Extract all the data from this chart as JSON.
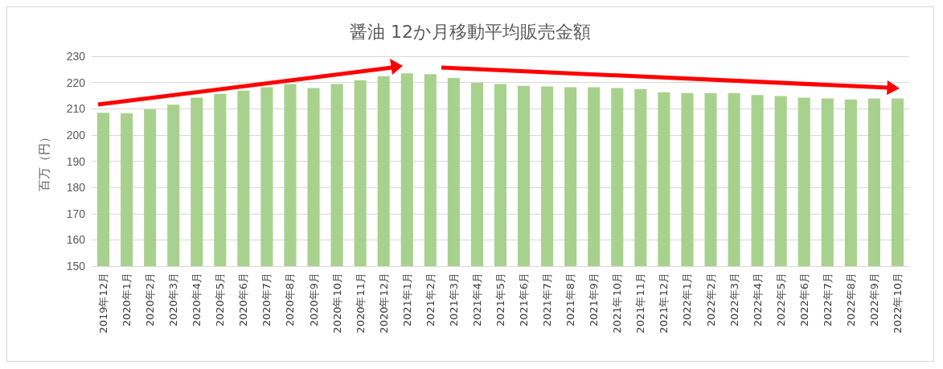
{
  "chart_data": {
    "type": "bar",
    "title": "醤油 12か月移動平均販売金額",
    "ylabel": "百万（円）",
    "categories": [
      "2019年12月",
      "2020年1月",
      "2020年2月",
      "2020年3月",
      "2020年4月",
      "2020年5月",
      "2020年6月",
      "2020年7月",
      "2020年8月",
      "2020年9月",
      "2020年10月",
      "2020年11月",
      "2020年12月",
      "2021年1月",
      "2021年2月",
      "2021年3月",
      "2021年4月",
      "2021年5月",
      "2021年6月",
      "2021年7月",
      "2021年8月",
      "2021年9月",
      "2021年10月",
      "2021年11月",
      "2021年12月",
      "2022年1月",
      "2022年2月",
      "2022年3月",
      "2022年4月",
      "2022年5月",
      "2022年6月",
      "2022年7月",
      "2022年8月",
      "2022年9月",
      "2022年10月"
    ],
    "values": [
      208.5,
      208.2,
      209.8,
      211.5,
      214.2,
      215.7,
      216.9,
      218.2,
      219.4,
      217.9,
      219.4,
      220.9,
      222.4,
      223.5,
      223.2,
      221.7,
      219.9,
      219.4,
      218.7,
      218.5,
      218.2,
      218.2,
      217.9,
      217.5,
      216.3,
      216.0,
      216.0,
      216.0,
      215.2,
      214.8,
      214.2,
      213.9,
      213.5,
      213.9,
      213.9
    ],
    "color": "#a9d18e",
    "ylim": [
      150,
      230
    ],
    "yticks": [
      150,
      160,
      170,
      180,
      190,
      200,
      210,
      220,
      230
    ],
    "grid": "y"
  }
}
